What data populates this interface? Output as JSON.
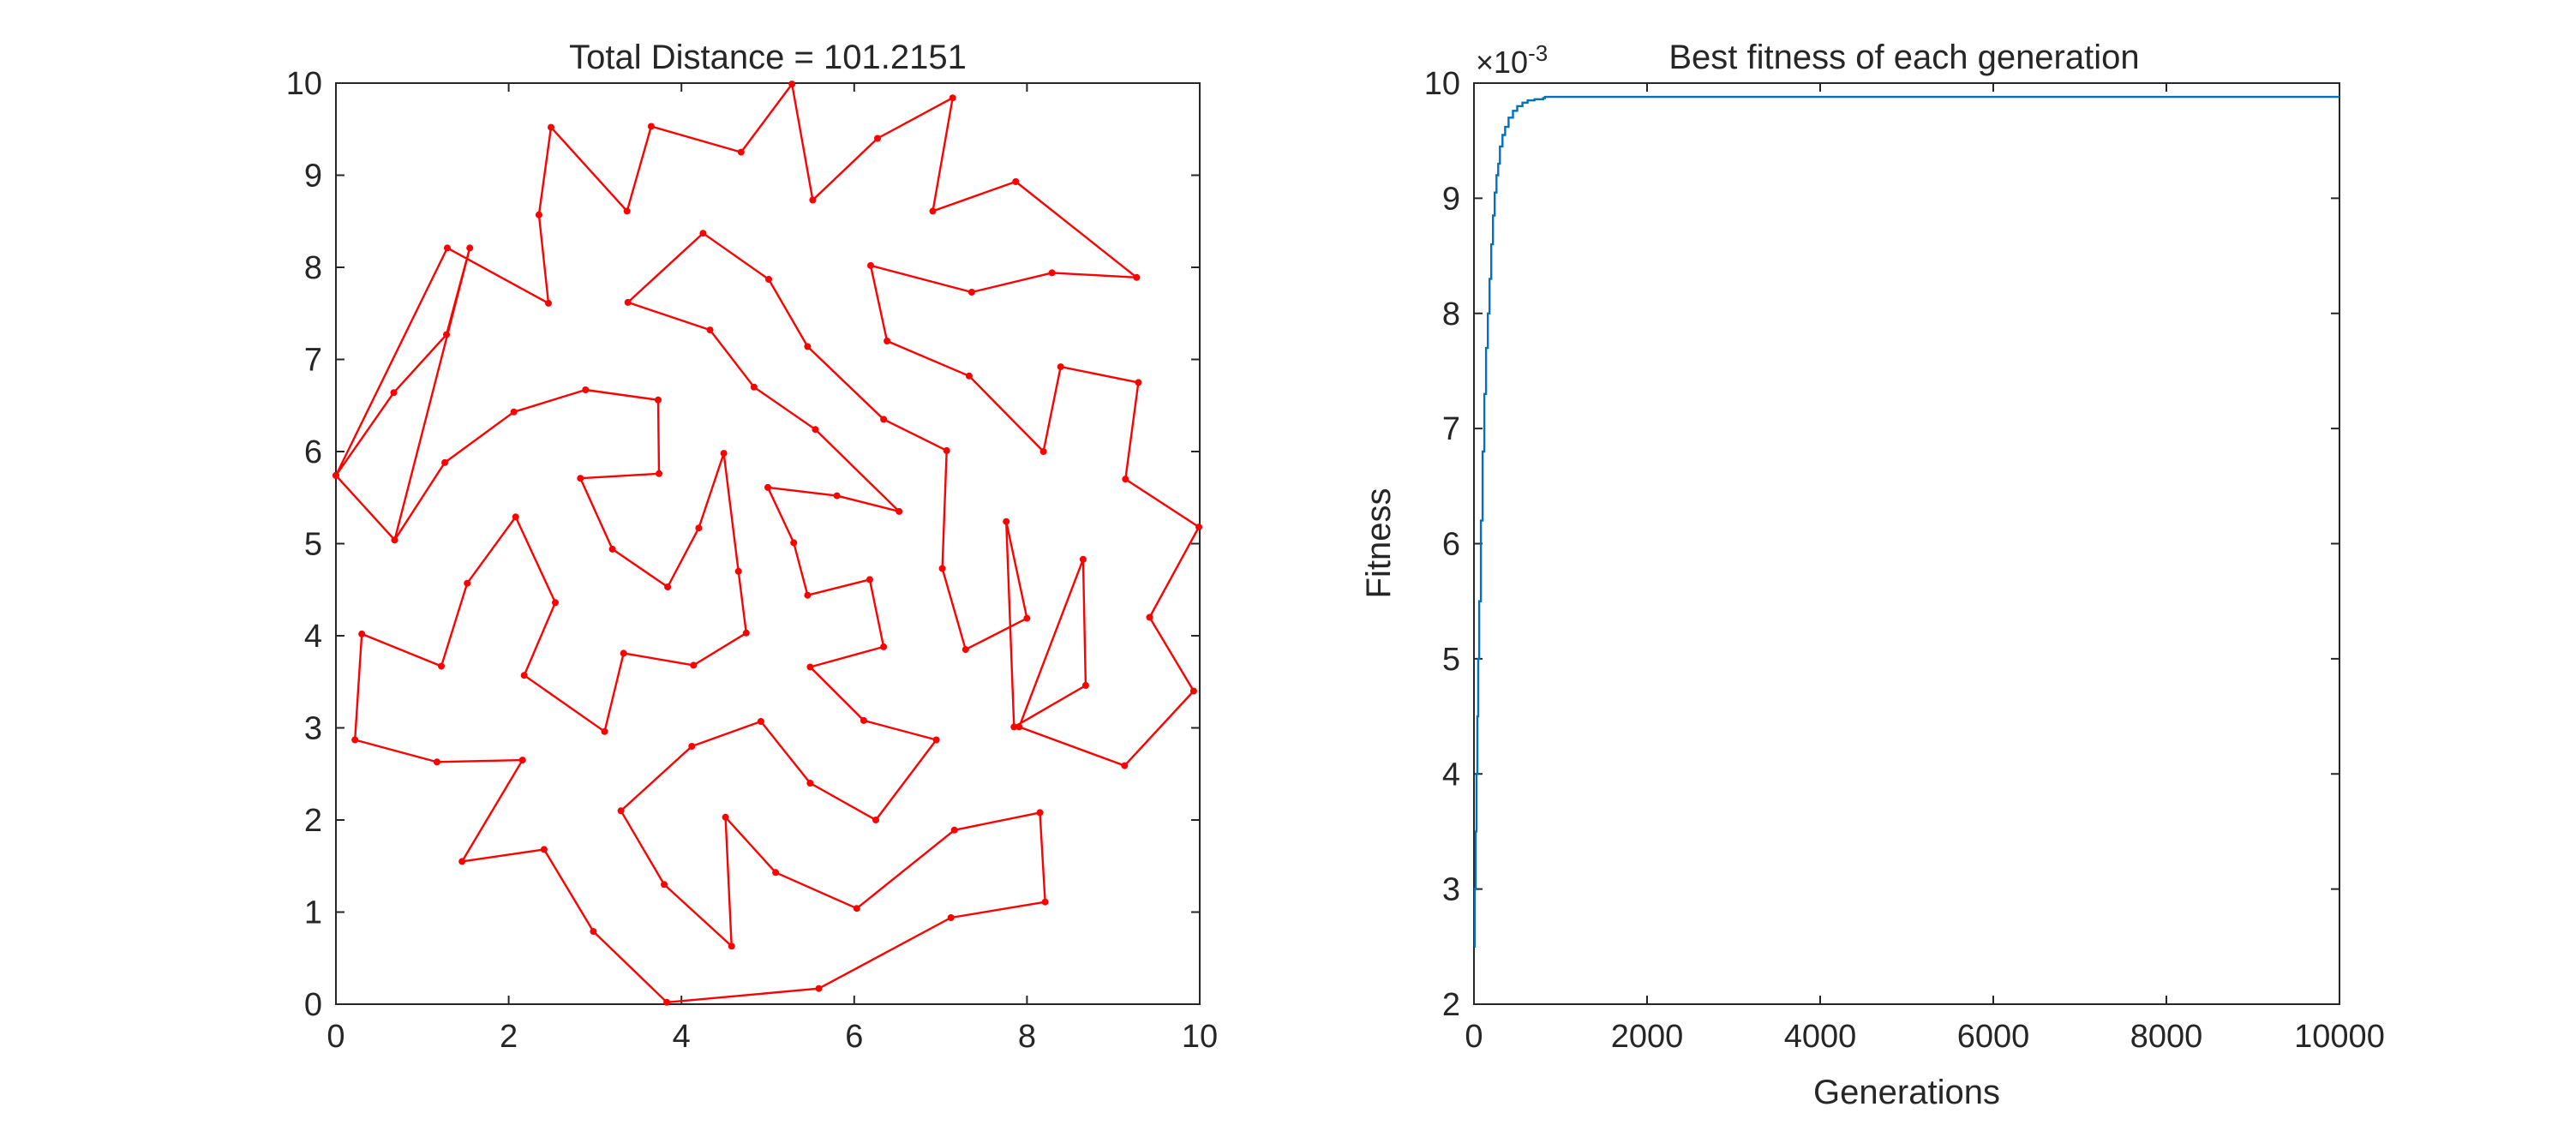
{
  "colors": {
    "route": "#ff0000",
    "fitness_line": "#0072bd",
    "axis": "#262626",
    "background": "#ffffff"
  },
  "chart_data": [
    {
      "type": "line",
      "title": "Total Distance = 101.2151",
      "xlabel": "",
      "ylabel": "",
      "xlim": [
        0,
        10
      ],
      "ylim": [
        0,
        10
      ],
      "xticks": [
        0,
        2,
        4,
        6,
        8,
        10
      ],
      "yticks": [
        0,
        1,
        2,
        3,
        4,
        5,
        6,
        7,
        8,
        9,
        10
      ],
      "xtick_labels": [
        "0",
        "2",
        "4",
        "6",
        "8",
        "10"
      ],
      "ytick_labels": [
        "0",
        "1",
        "2",
        "3",
        "4",
        "5",
        "6",
        "7",
        "8",
        "9",
        "10"
      ],
      "grid": false,
      "closed_path": true,
      "series": [
        {
          "marker": "point",
          "x": [
            0.0,
            0.67,
            1.28,
            1.55,
            0.68,
            0.0,
            0.68,
            1.26,
            2.06,
            2.89,
            3.73,
            3.74,
            2.83,
            3.2,
            3.84,
            4.2,
            4.49,
            4.66,
            4.75,
            4.14,
            3.33,
            3.11,
            2.18,
            2.54,
            2.08,
            1.52,
            1.22,
            0.3,
            0.22,
            1.17,
            2.16,
            1.46,
            2.41,
            2.98,
            3.83,
            5.59,
            7.12,
            8.21,
            8.15,
            7.16,
            6.03,
            5.09,
            4.51,
            4.58,
            3.8,
            3.3,
            4.12,
            4.92,
            5.49,
            6.25,
            6.95,
            6.11,
            5.49,
            6.34,
            6.18,
            5.46,
            5.3,
            5.0,
            5.8,
            6.52,
            5.55,
            4.84,
            4.33,
            3.38,
            4.25,
            5.01,
            5.46,
            6.34,
            7.07,
            7.02,
            7.29,
            8.0,
            7.76,
            7.85,
            8.68,
            8.65,
            7.91,
            9.13,
            9.93,
            9.42,
            9.99,
            9.14,
            9.29,
            8.39,
            8.19,
            7.33,
            6.38,
            6.19,
            7.36,
            8.29,
            9.27,
            7.87,
            6.91,
            7.14,
            6.27,
            5.52,
            5.28,
            4.69,
            3.65,
            3.37,
            2.49,
            2.35,
            2.46,
            1.29
          ],
          "y": [
            5.74,
            6.64,
            7.27,
            8.21,
            5.04,
            5.74,
            5.04,
            5.88,
            6.43,
            6.67,
            6.56,
            5.76,
            5.71,
            4.94,
            4.53,
            5.17,
            5.98,
            4.7,
            4.03,
            3.68,
            3.81,
            2.96,
            3.57,
            4.36,
            5.29,
            4.57,
            3.67,
            4.02,
            2.87,
            2.63,
            2.65,
            1.55,
            1.68,
            0.79,
            0.02,
            0.17,
            0.94,
            1.11,
            2.08,
            1.89,
            1.04,
            1.43,
            2.03,
            0.63,
            1.3,
            2.1,
            2.8,
            3.07,
            2.4,
            2.0,
            2.87,
            3.08,
            3.66,
            3.88,
            4.61,
            4.44,
            5.01,
            5.61,
            5.52,
            5.35,
            6.24,
            6.7,
            7.32,
            7.62,
            8.37,
            7.87,
            7.14,
            6.35,
            6.01,
            4.73,
            3.85,
            4.19,
            5.24,
            3.01,
            3.46,
            4.83,
            3.01,
            2.59,
            3.4,
            4.2,
            5.18,
            5.7,
            6.75,
            6.92,
            6.0,
            6.82,
            7.2,
            8.02,
            7.73,
            7.94,
            7.89,
            8.93,
            8.61,
            9.84,
            9.4,
            8.73,
            9.99,
            9.25,
            9.53,
            8.61,
            9.52,
            8.57,
            7.61,
            8.21
          ]
        }
      ]
    },
    {
      "type": "line",
      "title": "Best fitness of each generation",
      "xlabel": "Generations",
      "ylabel": "Fitness",
      "xlim": [
        0,
        10000
      ],
      "ylim": [
        2,
        10
      ],
      "exponent_label": "×10",
      "exponent_power": "-3",
      "xticks": [
        0,
        2000,
        4000,
        6000,
        8000,
        10000
      ],
      "yticks": [
        2,
        3,
        4,
        5,
        6,
        7,
        8,
        9,
        10
      ],
      "xtick_labels": [
        "0",
        "2000",
        "4000",
        "6000",
        "8000",
        "10000"
      ],
      "ytick_labels": [
        "2",
        "3",
        "4",
        "5",
        "6",
        "7",
        "8",
        "9",
        "10"
      ],
      "grid": false,
      "series": [
        {
          "x": [
            0,
            10,
            20,
            30,
            40,
            50,
            60,
            80,
            100,
            120,
            140,
            160,
            180,
            200,
            220,
            240,
            260,
            280,
            300,
            330,
            360,
            400,
            450,
            500,
            560,
            620,
            700,
            800,
            820,
            1000,
            2000,
            4000,
            6000,
            8000,
            10000
          ],
          "y": [
            2.5,
            3.0,
            3.5,
            4.0,
            4.5,
            5.0,
            5.5,
            6.2,
            6.8,
            7.3,
            7.7,
            8.0,
            8.3,
            8.6,
            8.85,
            9.05,
            9.2,
            9.3,
            9.45,
            9.55,
            9.62,
            9.7,
            9.76,
            9.8,
            9.83,
            9.85,
            9.86,
            9.87,
            9.88,
            9.88,
            9.88,
            9.88,
            9.88,
            9.88,
            9.88
          ]
        }
      ]
    }
  ]
}
